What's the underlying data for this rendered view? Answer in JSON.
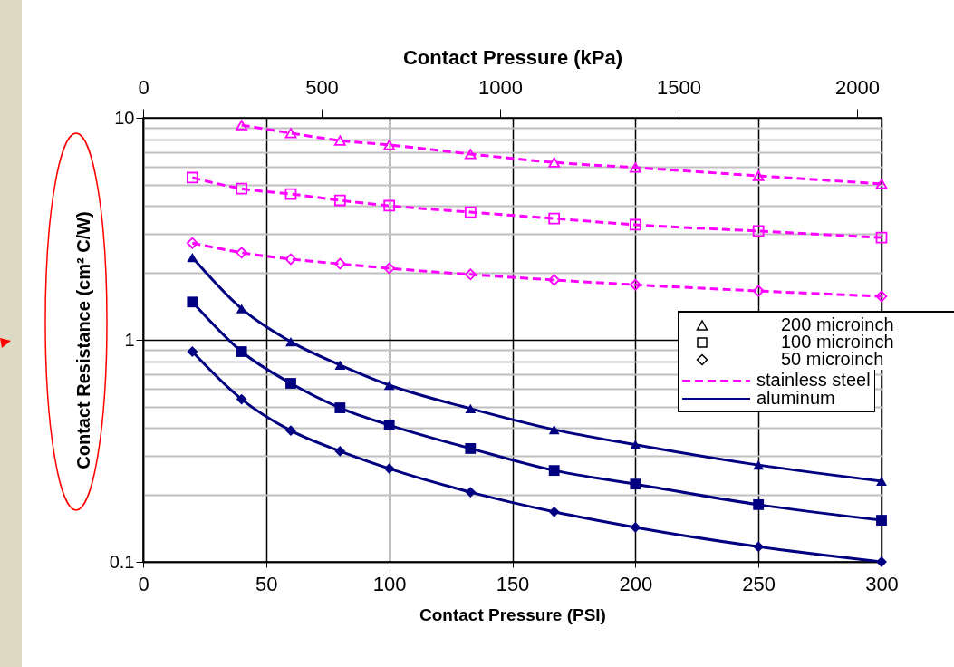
{
  "chart_data": {
    "type": "line",
    "xlabel": "Contact Pressure (PSI)",
    "ylabel": "Contact Resistance (cm² C/W)",
    "x2label": "Contact Pressure (kPa)",
    "x": [
      20,
      40,
      60,
      80,
      100,
      133,
      167,
      200,
      250,
      300
    ],
    "series": [
      {
        "name": "stainless steel",
        "color": "#ff00ff",
        "marker": "triangle",
        "line_style": "dashed",
        "values": [
          null,
          9.27,
          8.53,
          7.9,
          7.55,
          6.87,
          6.3,
          5.97,
          5.48,
          5.04
        ]
      },
      {
        "color": "#ff00ff",
        "marker": "square",
        "line_style": "dashed",
        "values": [
          5.38,
          4.8,
          4.54,
          4.25,
          4.02,
          3.76,
          3.52,
          3.3,
          3.09,
          2.89
        ]
      },
      {
        "color": "#ff00ff",
        "marker": "diamond",
        "line_style": "dashed",
        "values": [
          2.73,
          2.47,
          2.31,
          2.2,
          2.1,
          1.97,
          1.86,
          1.77,
          1.66,
          1.57
        ]
      },
      {
        "name": "aluminum",
        "color": "#000080",
        "marker": "triangle",
        "line_style": "solid",
        "values": [
          2.35,
          1.38,
          0.98,
          0.77,
          0.625,
          0.49,
          0.394,
          0.337,
          0.273,
          0.231
        ]
      },
      {
        "color": "#000080",
        "marker": "square",
        "line_style": "solid",
        "values": [
          1.48,
          0.885,
          0.637,
          0.494,
          0.413,
          0.324,
          0.258,
          0.224,
          0.181,
          0.154
        ]
      },
      {
        "color": "#000080",
        "marker": "diamond",
        "line_style": "solid",
        "values": [
          0.885,
          0.54,
          0.39,
          0.315,
          0.263,
          0.206,
          0.168,
          0.143,
          0.117,
          0.1
        ]
      }
    ],
    "annotations": [
      "200 microinch",
      "100 microinch",
      "50 microinch"
    ],
    "xlim": [
      0,
      300
    ],
    "xticks": [
      0,
      50,
      100,
      150,
      200,
      250,
      300
    ],
    "x2lim": [
      0,
      2068.4
    ],
    "x2ticks": [
      0,
      500,
      1000,
      1500,
      2000
    ],
    "ylim": [
      0.1,
      10
    ],
    "yticks": [
      0.1,
      {
        "value": 0.2,
        "label": null
      },
      {
        "value": 0.3,
        "label": null
      },
      {
        "value": 0.4,
        "label": null
      },
      {
        "value": 0.5,
        "label": null
      },
      {
        "value": 0.6,
        "label": null
      },
      {
        "value": 0.7,
        "label": null
      },
      {
        "value": 0.8,
        "label": null
      },
      {
        "value": 0.9,
        "label": null
      },
      1,
      {
        "value": 2,
        "label": null
      },
      {
        "value": 3,
        "label": null
      },
      {
        "value": 4,
        "label": null
      },
      {
        "value": 5,
        "label": null
      },
      {
        "value": 6,
        "label": null
      },
      {
        "value": 7,
        "label": null
      },
      {
        "value": 8,
        "label": null
      },
      {
        "value": 9,
        "label": null
      },
      10
    ],
    "log": "y",
    "grid": true,
    "legend": "right"
  }
}
